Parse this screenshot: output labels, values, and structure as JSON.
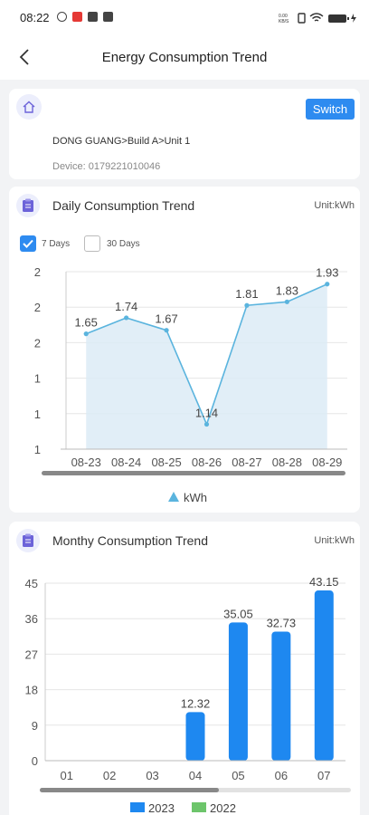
{
  "status_bar": {
    "time": "08:22"
  },
  "nav": {
    "title": "Energy Consumption Trend"
  },
  "location": {
    "switch_label": "Switch",
    "path": "DONG GUANG>Build A>Unit 1",
    "device": "Device: 0179221010046"
  },
  "daily": {
    "title": "Daily Consumption Trend",
    "unit": "Unit:kWh",
    "options": [
      {
        "label": "7 Days",
        "checked": true
      },
      {
        "label": "30 Days",
        "checked": false
      }
    ]
  },
  "monthly": {
    "title": "Monthy Consumption Trend",
    "unit": "Unit:kWh"
  },
  "colors": {
    "accent": "#2e8bf0",
    "line": "#5ab4de",
    "area": "#dcebf6",
    "bar2023": "#1e88f0",
    "bar2022": "#6dc56b"
  },
  "chart_data": [
    {
      "type": "area",
      "categories": [
        "08-23",
        "08-24",
        "08-25",
        "08-26",
        "08-27",
        "08-28",
        "08-29"
      ],
      "series": [
        {
          "name": "kWh",
          "values": [
            1.65,
            1.74,
            1.67,
            1.14,
            1.81,
            1.83,
            1.93
          ]
        }
      ],
      "y_tick_labels": [
        "1",
        "1",
        "1",
        "2",
        "2",
        "2"
      ],
      "ylim": [
        1.0,
        2.0
      ],
      "grid": true,
      "legend": "bottom"
    },
    {
      "type": "bar",
      "categories": [
        "01",
        "02",
        "03",
        "04",
        "05",
        "06",
        "07"
      ],
      "series": [
        {
          "name": "2023",
          "values": [
            null,
            null,
            null,
            12.32,
            35.05,
            32.73,
            43.15
          ]
        },
        {
          "name": "2022",
          "values": [
            null,
            null,
            null,
            null,
            null,
            null,
            null
          ]
        }
      ],
      "y_ticks": [
        0,
        9,
        18,
        27,
        36,
        45
      ],
      "ylim": [
        0,
        45
      ],
      "grid": true,
      "legend": "bottom"
    }
  ]
}
